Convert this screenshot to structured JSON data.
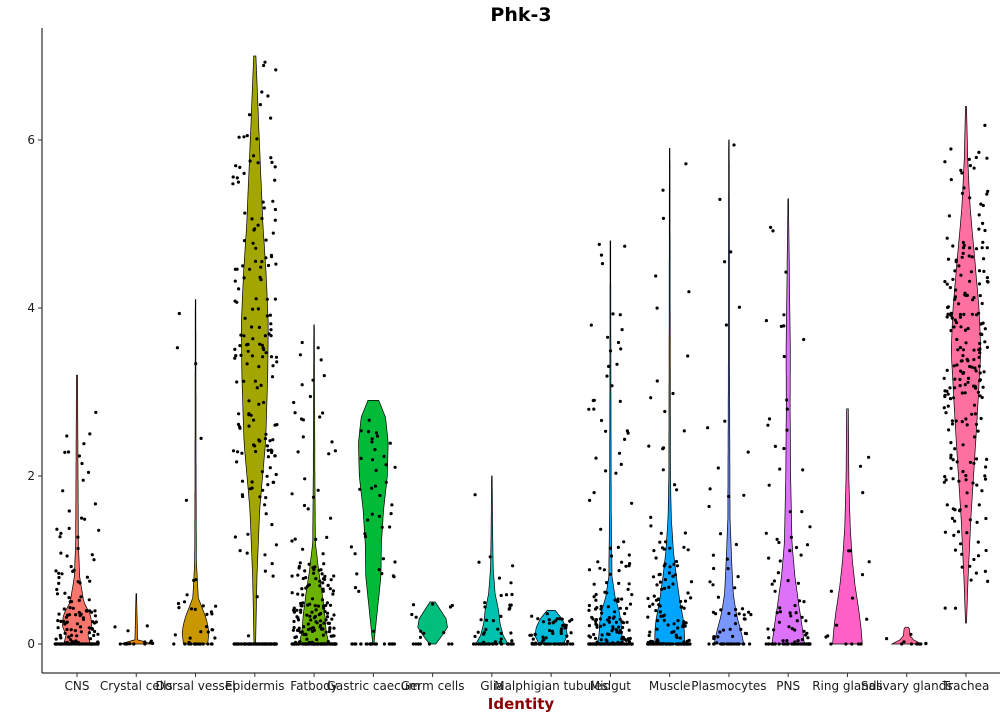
{
  "chart_data": {
    "type": "violin",
    "title": "Phk-3",
    "xlabel": "Identity",
    "ylabel": "",
    "ylim": [
      -0.35,
      7.05
    ],
    "yticks": [
      0,
      2,
      4,
      6
    ],
    "grid": false,
    "legend": "none",
    "colors": {
      "title": "#000000",
      "xlabel": "#8b0000",
      "axis": "#000000",
      "points": "#000000"
    },
    "categories": [
      {
        "name": "CNS",
        "color": "#F8766D",
        "max": 3.2,
        "violin": [
          [
            0,
            0.5
          ],
          [
            0.1,
            0.4
          ],
          [
            0.22,
            0.55
          ],
          [
            0.35,
            0.5
          ],
          [
            0.5,
            0.25
          ],
          [
            0.8,
            0.1
          ],
          [
            1.2,
            0.05
          ],
          [
            2.5,
            0.03
          ],
          [
            3.2,
            0.02
          ]
        ],
        "n": 170
      },
      {
        "name": "Crystal cells",
        "color": "#E58700",
        "max": 0.6,
        "violin": [
          [
            0,
            0.6
          ],
          [
            0.05,
            0.05
          ],
          [
            0.6,
            0.01
          ]
        ],
        "n": 16
      },
      {
        "name": "Dorsal vessel",
        "color": "#C99800",
        "max": 4.1,
        "violin": [
          [
            0,
            0.45
          ],
          [
            0.15,
            0.5
          ],
          [
            0.3,
            0.4
          ],
          [
            0.45,
            0.22
          ],
          [
            0.55,
            0.1
          ],
          [
            1.0,
            0.03
          ],
          [
            2.0,
            0.02
          ],
          [
            4.1,
            0.01
          ]
        ],
        "n": 45
      },
      {
        "name": "Epidermis",
        "color": "#A3A500",
        "max": 7.0,
        "violin": [
          [
            0,
            0.03
          ],
          [
            0.8,
            0.08
          ],
          [
            1.6,
            0.18
          ],
          [
            2.4,
            0.4
          ],
          [
            3.2,
            0.48
          ],
          [
            3.8,
            0.5
          ],
          [
            4.4,
            0.42
          ],
          [
            5.0,
            0.3
          ],
          [
            5.6,
            0.22
          ],
          [
            6.2,
            0.14
          ],
          [
            6.7,
            0.08
          ],
          [
            7.0,
            0.04
          ]
        ],
        "n": 260
      },
      {
        "name": "Fatbody",
        "color": "#6BB100",
        "max": 3.8,
        "violin": [
          [
            0,
            0.55
          ],
          [
            0.15,
            0.45
          ],
          [
            0.35,
            0.4
          ],
          [
            0.6,
            0.3
          ],
          [
            0.85,
            0.18
          ],
          [
            1.2,
            0.05
          ],
          [
            2.0,
            0.03
          ],
          [
            3.8,
            0.01
          ]
        ],
        "n": 260
      },
      {
        "name": "Gastric caecum",
        "color": "#00BA38",
        "max": 2.9,
        "violin": [
          [
            0,
            0.02
          ],
          [
            0.4,
            0.15
          ],
          [
            0.8,
            0.28
          ],
          [
            1.2,
            0.3
          ],
          [
            1.6,
            0.38
          ],
          [
            2.0,
            0.52
          ],
          [
            2.4,
            0.55
          ],
          [
            2.7,
            0.45
          ],
          [
            2.9,
            0.2
          ]
        ],
        "n": 65
      },
      {
        "name": "Germ cells",
        "color": "#00BF7D",
        "max": 0.5,
        "violin": [
          [
            0,
            0.12
          ],
          [
            0.1,
            0.35
          ],
          [
            0.2,
            0.55
          ],
          [
            0.3,
            0.5
          ],
          [
            0.4,
            0.3
          ],
          [
            0.5,
            0.1
          ]
        ],
        "n": 18
      },
      {
        "name": "Glia",
        "color": "#00C0AF",
        "max": 2.0,
        "violin": [
          [
            0,
            0.6
          ],
          [
            0.1,
            0.42
          ],
          [
            0.25,
            0.3
          ],
          [
            0.4,
            0.25
          ],
          [
            0.6,
            0.12
          ],
          [
            0.9,
            0.05
          ],
          [
            1.3,
            0.03
          ],
          [
            2.0,
            0.01
          ]
        ],
        "n": 55
      },
      {
        "name": "Malphigian tubules",
        "color": "#00BCD8",
        "max": 0.4,
        "violin": [
          [
            0,
            0.45
          ],
          [
            0.1,
            0.6
          ],
          [
            0.2,
            0.55
          ],
          [
            0.3,
            0.4
          ],
          [
            0.4,
            0.15
          ]
        ],
        "n": 70
      },
      {
        "name": "Midgut",
        "color": "#00B0F6",
        "max": 4.8,
        "violin": [
          [
            0,
            0.5
          ],
          [
            0.1,
            0.42
          ],
          [
            0.25,
            0.4
          ],
          [
            0.4,
            0.32
          ],
          [
            0.55,
            0.18
          ],
          [
            0.8,
            0.06
          ],
          [
            1.6,
            0.03
          ],
          [
            3.0,
            0.02
          ],
          [
            4.8,
            0.01
          ]
        ],
        "n": 210
      },
      {
        "name": "Muscle",
        "color": "#00A5FF",
        "max": 5.9,
        "violin": [
          [
            0,
            0.55
          ],
          [
            0.15,
            0.55
          ],
          [
            0.3,
            0.5
          ],
          [
            0.5,
            0.38
          ],
          [
            0.8,
            0.25
          ],
          [
            1.1,
            0.14
          ],
          [
            1.5,
            0.06
          ],
          [
            2.0,
            0.03
          ],
          [
            3.5,
            0.02
          ],
          [
            5.9,
            0.01
          ]
        ],
        "n": 170
      },
      {
        "name": "Plasmocytes",
        "color": "#7997FF",
        "max": 6.0,
        "violin": [
          [
            0,
            0.55
          ],
          [
            0.15,
            0.45
          ],
          [
            0.35,
            0.28
          ],
          [
            0.6,
            0.16
          ],
          [
            1.0,
            0.1
          ],
          [
            1.5,
            0.04
          ],
          [
            2.5,
            0.03
          ],
          [
            3.5,
            0.02
          ],
          [
            4.5,
            0.02
          ],
          [
            6.0,
            0.01
          ]
        ],
        "n": 70
      },
      {
        "name": "PNS",
        "color": "#DC71FA",
        "max": 5.3,
        "violin": [
          [
            0,
            0.6
          ],
          [
            0.2,
            0.52
          ],
          [
            0.45,
            0.4
          ],
          [
            0.8,
            0.25
          ],
          [
            1.2,
            0.14
          ],
          [
            2.0,
            0.09
          ],
          [
            2.8,
            0.07
          ],
          [
            3.5,
            0.08
          ],
          [
            4.2,
            0.05
          ],
          [
            5.3,
            0.01
          ]
        ],
        "n": 110
      },
      {
        "name": "Ring glands",
        "color": "#FF61C9",
        "max": 2.8,
        "violin": [
          [
            0,
            0.55
          ],
          [
            0.2,
            0.5
          ],
          [
            0.4,
            0.42
          ],
          [
            0.7,
            0.28
          ],
          [
            1.0,
            0.18
          ],
          [
            1.4,
            0.1
          ],
          [
            2.0,
            0.05
          ],
          [
            2.5,
            0.04
          ],
          [
            2.8,
            0.03
          ]
        ],
        "n": 18
      },
      {
        "name": "Salivary glands",
        "color": "#FF6A98",
        "max": 0.2,
        "violin": [
          [
            0,
            0.55
          ],
          [
            0.05,
            0.25
          ],
          [
            0.1,
            0.12
          ],
          [
            0.18,
            0.1
          ],
          [
            0.2,
            0.05
          ]
        ],
        "n": 10
      },
      {
        "name": "Trachea",
        "color": "#FF6FA0",
        "max": 6.4,
        "violin": [
          [
            0.25,
            0.02
          ],
          [
            0.8,
            0.08
          ],
          [
            1.5,
            0.18
          ],
          [
            2.2,
            0.32
          ],
          [
            2.9,
            0.45
          ],
          [
            3.5,
            0.55
          ],
          [
            4.0,
            0.48
          ],
          [
            4.6,
            0.32
          ],
          [
            5.2,
            0.15
          ],
          [
            5.8,
            0.06
          ],
          [
            6.4,
            0.02
          ]
        ],
        "n": 230
      }
    ]
  }
}
